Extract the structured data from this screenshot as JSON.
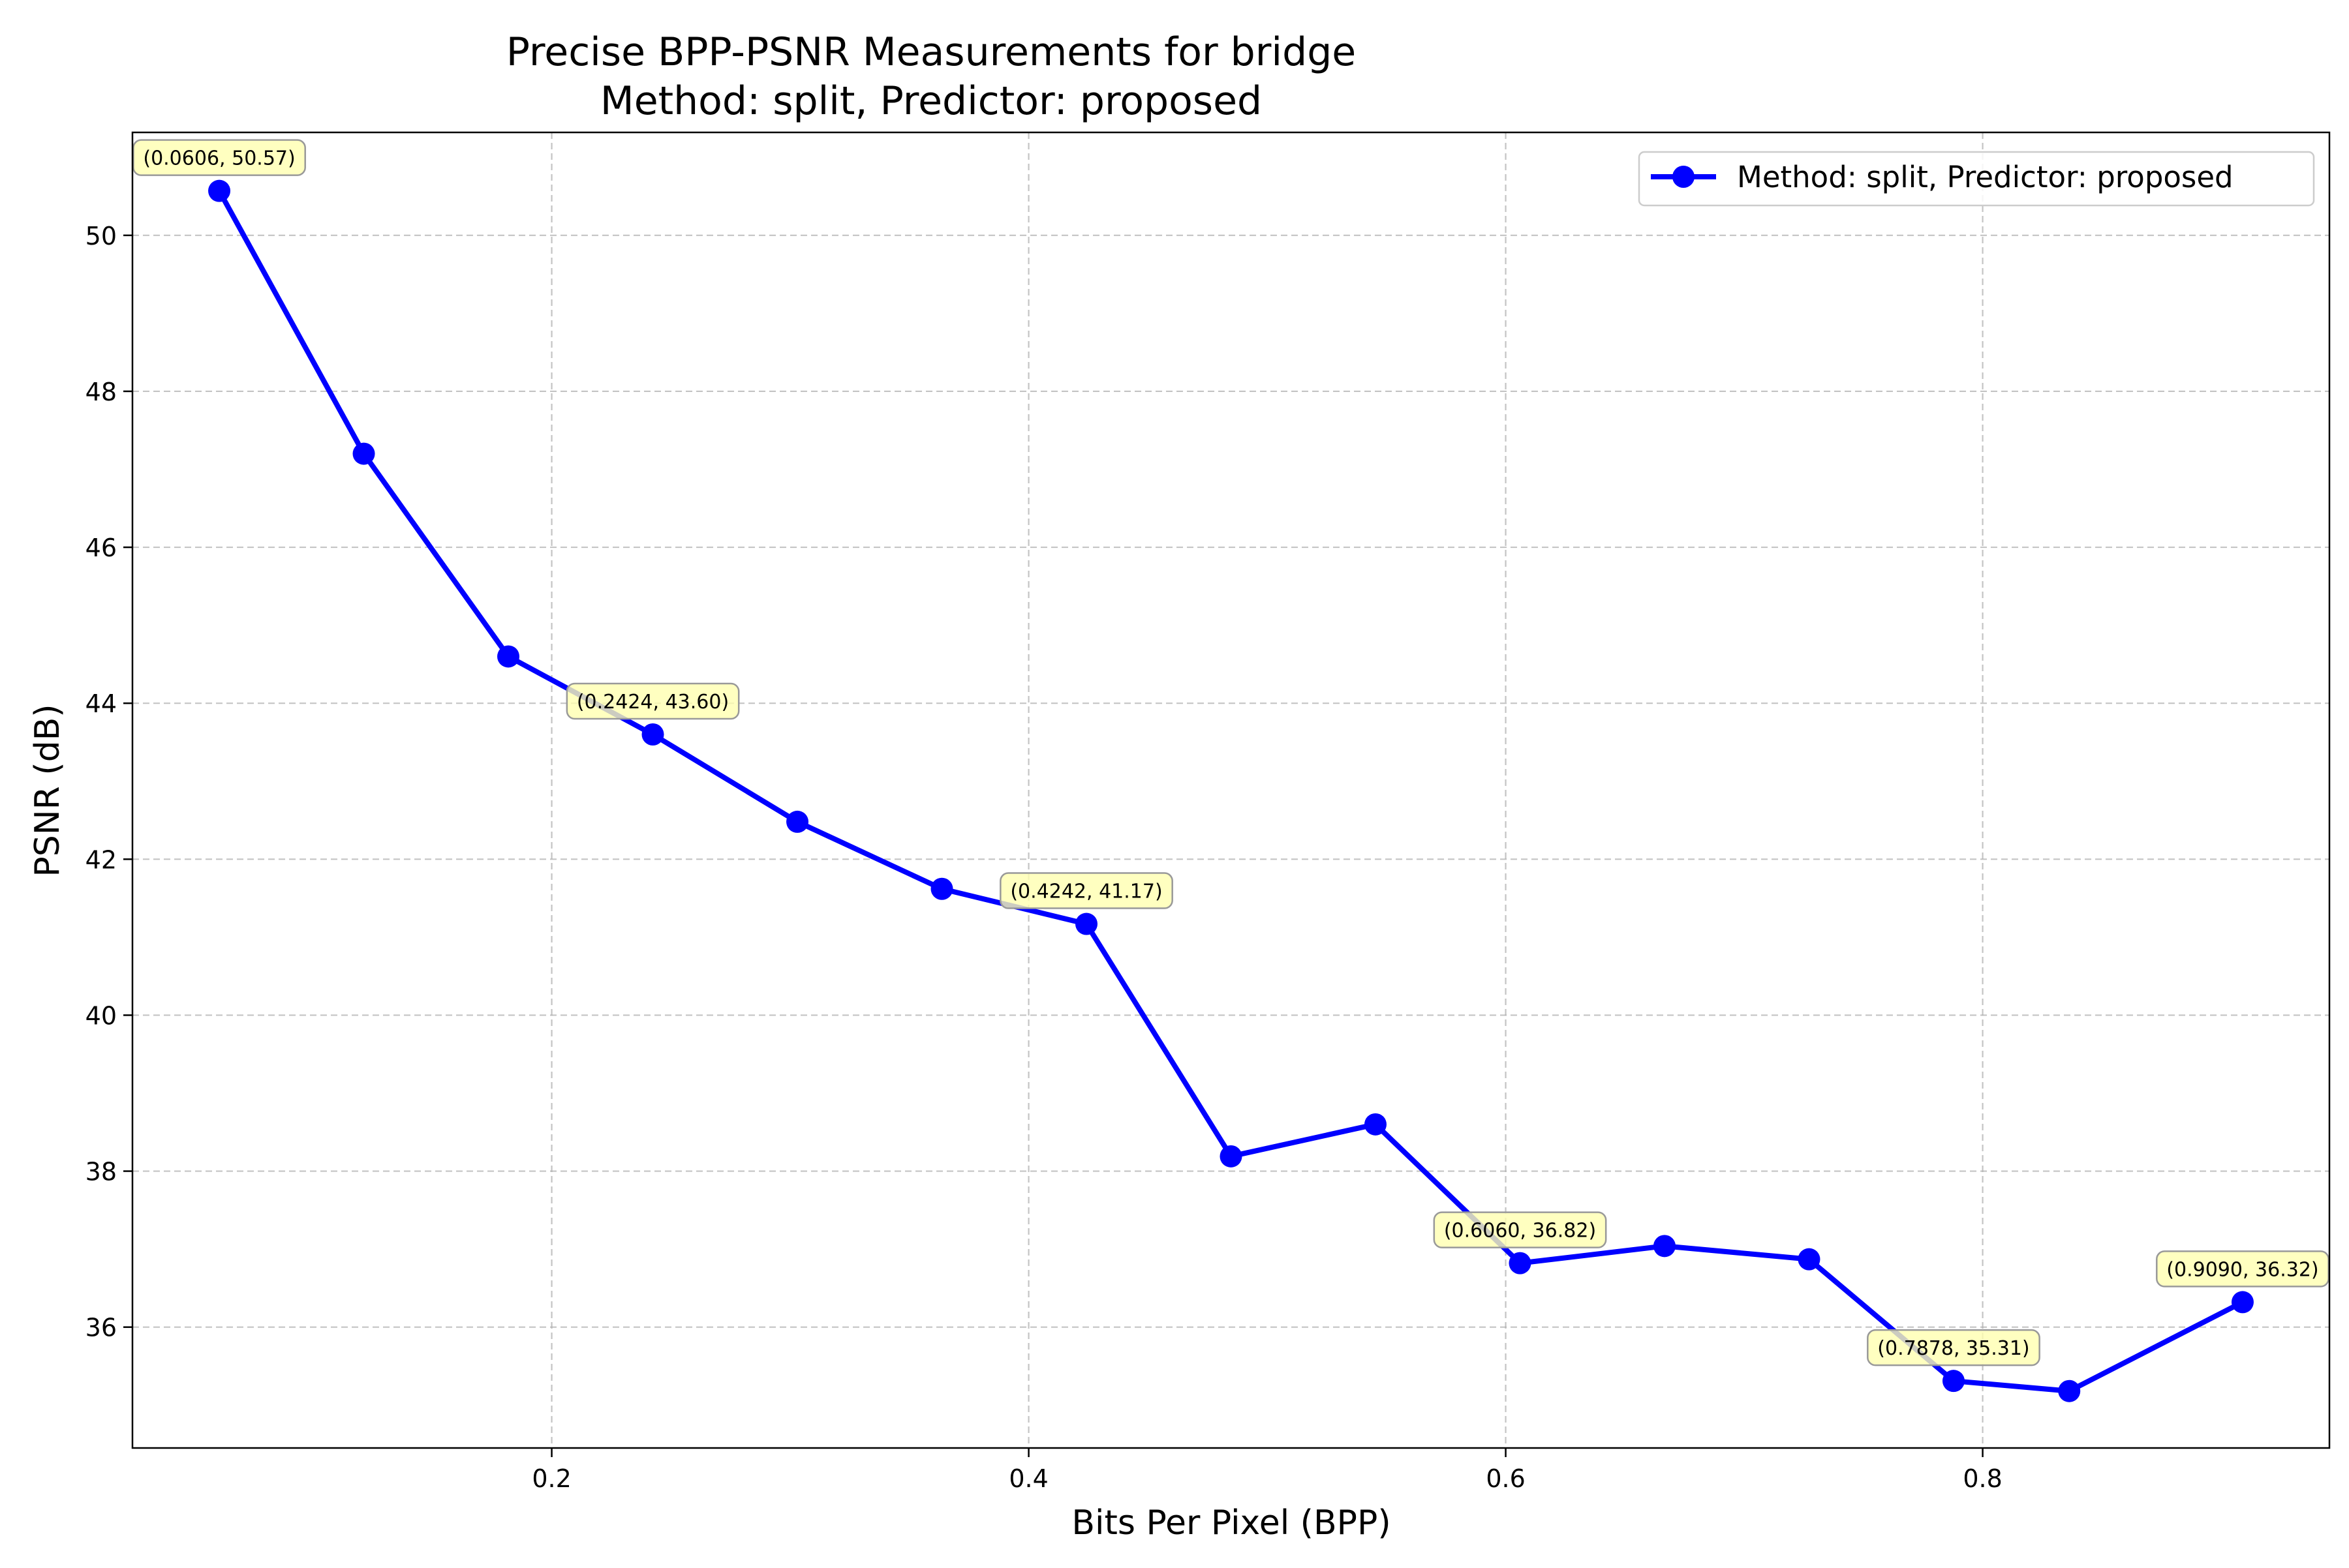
{
  "chart_data": {
    "type": "line",
    "title": "Precise BPP-PSNR Measurements for bridge",
    "subtitle": "Method: split, Predictor: proposed",
    "xlabel": "Bits Per Pixel (BPP)",
    "ylabel": "PSNR (dB)",
    "xlim": [
      0.0242,
      0.9454
    ],
    "ylim": [
      34.45,
      51.32
    ],
    "xticks": [
      0.2,
      0.4,
      0.6,
      0.8
    ],
    "xtick_labels": [
      "0.2",
      "0.4",
      "0.6",
      "0.8"
    ],
    "yticks": [
      36,
      38,
      40,
      42,
      44,
      46,
      48,
      50
    ],
    "ytick_labels": [
      "36",
      "38",
      "40",
      "42",
      "44",
      "46",
      "48",
      "50"
    ],
    "grid": true,
    "legend_position": "top-right",
    "series": [
      {
        "name": "Method: split, Predictor: proposed",
        "color": "#0000ff",
        "marker": "circle",
        "x": [
          0.0606,
          0.1212,
          0.1818,
          0.2424,
          0.303,
          0.3636,
          0.4242,
          0.4848,
          0.5454,
          0.606,
          0.6666,
          0.7272,
          0.7878,
          0.8363,
          0.909
        ],
        "y": [
          50.57,
          47.2,
          44.6,
          43.6,
          42.48,
          41.62,
          41.17,
          38.19,
          38.6,
          36.82,
          37.04,
          36.87,
          35.31,
          35.18,
          36.32
        ]
      }
    ],
    "annotations": [
      {
        "text": "(0.0606, 50.57)",
        "x": 0.0606,
        "y": 50.57
      },
      {
        "text": "(0.2424, 43.60)",
        "x": 0.2424,
        "y": 43.6
      },
      {
        "text": "(0.4242, 41.17)",
        "x": 0.4242,
        "y": 41.17
      },
      {
        "text": "(0.6060, 36.82)",
        "x": 0.606,
        "y": 36.82
      },
      {
        "text": "(0.7878, 35.31)",
        "x": 0.7878,
        "y": 35.31
      },
      {
        "text": "(0.9090, 36.32)",
        "x": 0.909,
        "y": 36.32
      }
    ],
    "annotation_fill": "#ffffb0",
    "grid_color": "#b0b0b0"
  }
}
